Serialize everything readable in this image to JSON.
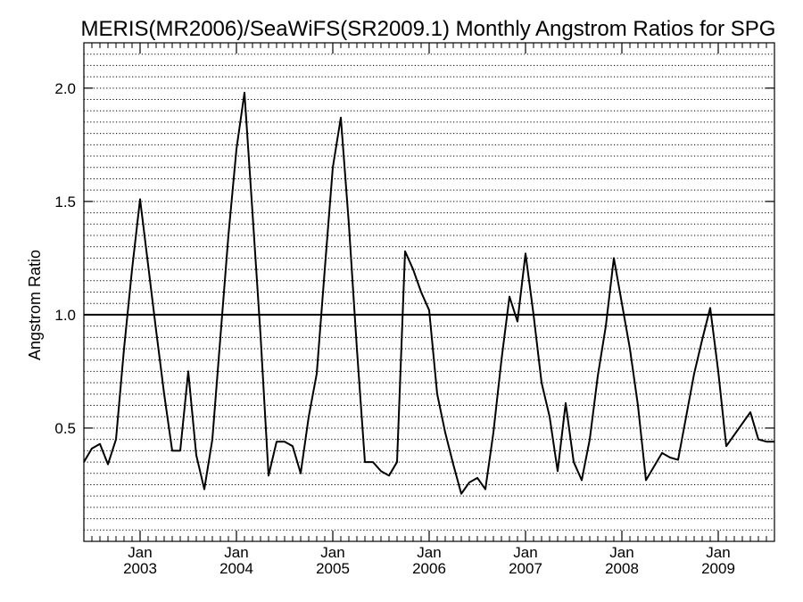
{
  "chart_data": {
    "type": "line",
    "title": "MERIS(MR2006)/SeaWiFS(SR2009.1) Monthly Angstrom Ratios for SPG",
    "xlabel": "",
    "ylabel": "Angstrom Ratio",
    "xlim": [
      "2002-06",
      "2009-08"
    ],
    "ylim": [
      0.0,
      2.2
    ],
    "yticks": [
      0.5,
      1.0,
      1.5,
      2.0
    ],
    "ytick_labels": [
      "0.5",
      "1.0",
      "1.5",
      "2.0"
    ],
    "xticks": [
      {
        "date": "2003-01",
        "month": "Jan",
        "year": "2003"
      },
      {
        "date": "2004-01",
        "month": "Jan",
        "year": "2004"
      },
      {
        "date": "2005-01",
        "month": "Jan",
        "year": "2005"
      },
      {
        "date": "2006-01",
        "month": "Jan",
        "year": "2006"
      },
      {
        "date": "2007-01",
        "month": "Jan",
        "year": "2007"
      },
      {
        "date": "2008-01",
        "month": "Jan",
        "year": "2008"
      },
      {
        "date": "2009-01",
        "month": "Jan",
        "year": "2009"
      }
    ],
    "reference_line": 1.0,
    "grid": "dotted horizontal",
    "series": [
      {
        "x": [
          "2002-06",
          "2002-07",
          "2002-08",
          "2002-09",
          "2002-10",
          "2002-11",
          "2002-12",
          "2003-01",
          "2003-02",
          "2003-03",
          "2003-04",
          "2003-05",
          "2003-06",
          "2003-07",
          "2003-08",
          "2003-09",
          "2003-10",
          "2003-11",
          "2003-12",
          "2004-01",
          "2004-02",
          "2004-03",
          "2004-04",
          "2004-05",
          "2004-06",
          "2004-07",
          "2004-08",
          "2004-09",
          "2004-10",
          "2004-11",
          "2004-12",
          "2005-01",
          "2005-02",
          "2005-03",
          "2005-04",
          "2005-05",
          "2005-06",
          "2005-07",
          "2005-08",
          "2005-09",
          "2005-10",
          "2005-11",
          "2005-12",
          "2006-01",
          "2006-02",
          "2006-03",
          "2006-04",
          "2006-05",
          "2006-06",
          "2006-07",
          "2006-08",
          "2006-09",
          "2006-10",
          "2006-11",
          "2006-12",
          "2007-01",
          "2007-02",
          "2007-03",
          "2007-04",
          "2007-05",
          "2007-06",
          "2007-07",
          "2007-08",
          "2007-09",
          "2007-10",
          "2007-11",
          "2007-12",
          "2008-01",
          "2008-02",
          "2008-03",
          "2008-04",
          "2008-05",
          "2008-06",
          "2008-07",
          "2008-08",
          "2008-09",
          "2008-10",
          "2008-11",
          "2008-12",
          "2009-01",
          "2009-02",
          "2009-03",
          "2009-04",
          "2009-05",
          "2009-06",
          "2009-07",
          "2009-08"
        ],
        "values": [
          0.35,
          0.41,
          0.43,
          0.34,
          0.45,
          0.85,
          1.2,
          1.51,
          1.22,
          0.93,
          0.65,
          0.4,
          0.4,
          0.75,
          0.38,
          0.23,
          0.45,
          0.9,
          1.35,
          1.73,
          1.98,
          1.45,
          0.91,
          0.29,
          0.44,
          0.44,
          0.42,
          0.3,
          0.55,
          0.74,
          1.2,
          1.65,
          1.87,
          1.4,
          0.85,
          0.35,
          0.35,
          0.31,
          0.29,
          0.35,
          1.28,
          1.2,
          1.1,
          1.02,
          0.65,
          0.48,
          0.34,
          0.21,
          0.26,
          0.28,
          0.23,
          0.48,
          0.8,
          1.08,
          0.97,
          1.27,
          1.0,
          0.7,
          0.55,
          0.31,
          0.61,
          0.35,
          0.27,
          0.45,
          0.73,
          0.95,
          1.25,
          1.05,
          0.85,
          0.6,
          0.27,
          0.33,
          0.39,
          0.37,
          0.36,
          0.55,
          0.74,
          0.89,
          1.03,
          0.75,
          0.42,
          0.47,
          0.52,
          0.57,
          0.45,
          0.44,
          0.44
        ]
      }
    ]
  }
}
